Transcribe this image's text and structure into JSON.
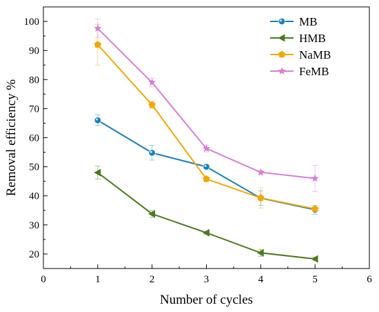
{
  "chart_data": {
    "type": "line",
    "title": "",
    "xlabel": "Number of cycles",
    "ylabel": "Removal efficiency %",
    "xlim": [
      0,
      6
    ],
    "ylim": [
      15,
      105
    ],
    "xticks": [
      0,
      1,
      2,
      3,
      4,
      5,
      6
    ],
    "yticks": [
      20,
      30,
      40,
      50,
      60,
      70,
      80,
      90,
      100
    ],
    "grid": false,
    "legend_position": "top-right",
    "x": [
      1,
      2,
      3,
      4,
      5
    ],
    "series": [
      {
        "name": "MB",
        "color": "#1a7fc1",
        "marker": "circle",
        "values": [
          66.0,
          54.8,
          50.0,
          39.2,
          35.2
        ],
        "errors": [
          1.8,
          2.5,
          0.8,
          2.5,
          1.5
        ]
      },
      {
        "name": "HMB",
        "color": "#4b7a1e",
        "marker": "triangle-left",
        "values": [
          48.0,
          33.8,
          27.3,
          20.4,
          18.3
        ],
        "errors": [
          2.2,
          1.2,
          0.5,
          1.2,
          0.6
        ]
      },
      {
        "name": "NaMB",
        "color": "#f4a700",
        "marker": "pentagon",
        "values": [
          92.0,
          71.3,
          45.8,
          39.3,
          35.5
        ],
        "errors": [
          7.0,
          1.2,
          0.5,
          3.5,
          0.8
        ]
      },
      {
        "name": "FeMB",
        "color": "#d77fd6",
        "marker": "star",
        "values": [
          97.6,
          79.0,
          56.3,
          48.1,
          46.0
        ],
        "errors": [
          3.2,
          1.5,
          1.2,
          0.7,
          4.5
        ]
      }
    ]
  }
}
